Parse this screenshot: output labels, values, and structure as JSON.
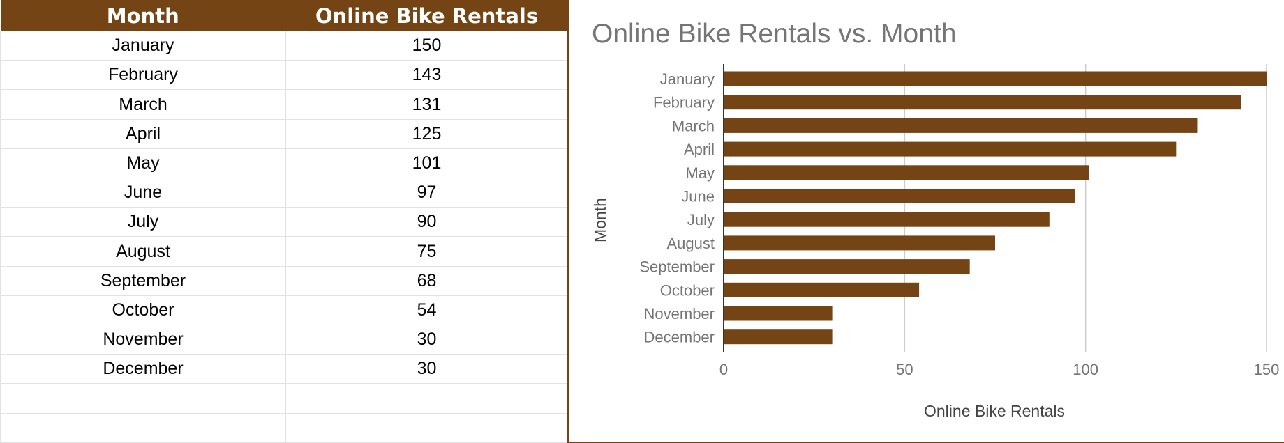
{
  "table": {
    "headers": [
      "Month",
      "Online Bike Rentals"
    ],
    "rows": [
      [
        "January",
        "150"
      ],
      [
        "February",
        "143"
      ],
      [
        "March",
        "131"
      ],
      [
        "April",
        "125"
      ],
      [
        "May",
        "101"
      ],
      [
        "June",
        "97"
      ],
      [
        "July",
        "90"
      ],
      [
        "August",
        "75"
      ],
      [
        "September",
        "68"
      ],
      [
        "October",
        "54"
      ],
      [
        "November",
        "30"
      ],
      [
        "December",
        "30"
      ]
    ]
  },
  "chart_data": {
    "type": "bar",
    "orientation": "horizontal",
    "title": "Online Bike Rentals vs. Month",
    "xlabel": "Online Bike Rentals",
    "ylabel": "Month",
    "categories": [
      "January",
      "February",
      "March",
      "April",
      "May",
      "June",
      "July",
      "August",
      "September",
      "October",
      "November",
      "December"
    ],
    "values": [
      150,
      143,
      131,
      125,
      101,
      97,
      90,
      75,
      68,
      54,
      30,
      30
    ],
    "xlim": [
      0,
      150
    ],
    "xticks": [
      0,
      50,
      100,
      150
    ],
    "grid": true,
    "legend": "none",
    "bar_color": "#754414"
  }
}
